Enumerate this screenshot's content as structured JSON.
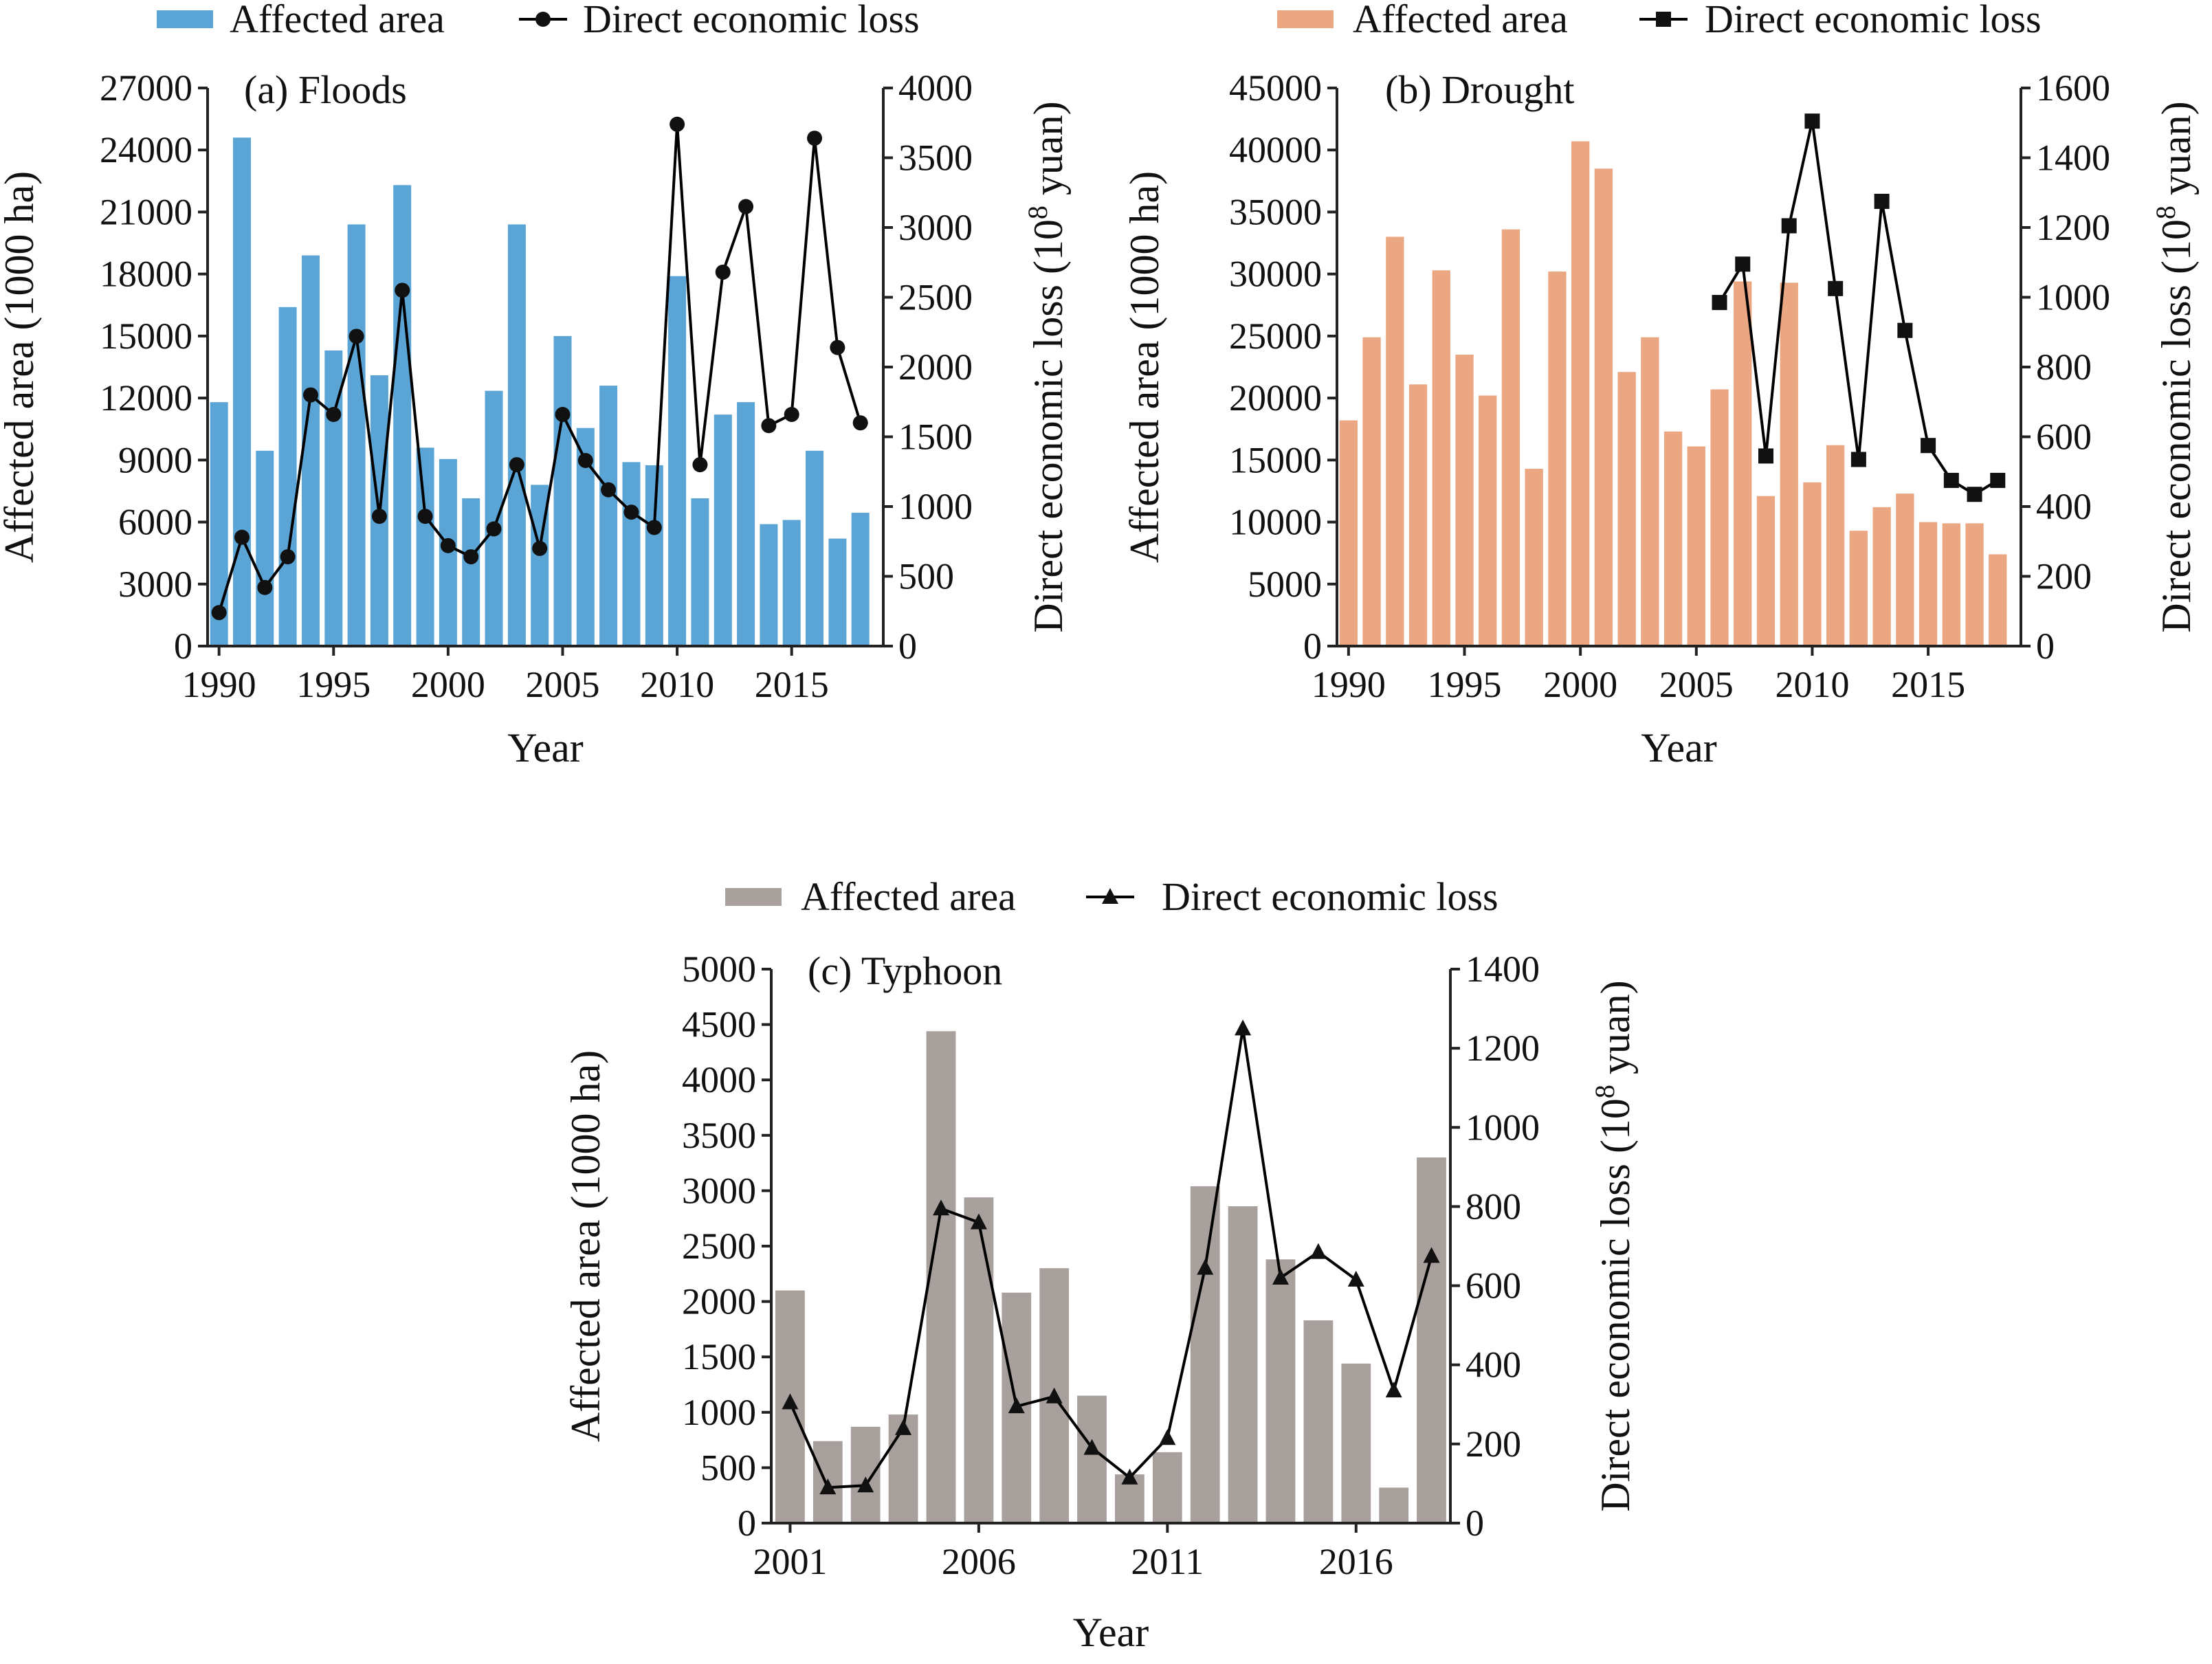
{
  "chart_data": [
    {
      "type": "bar",
      "panel_label": "(a) Floods",
      "xlabel": "Year",
      "ylabel": "Affected area (1000 ha)",
      "y2label_prefix": "Direct economic loss (10",
      "y2label_sup": "8",
      "y2label_suffix": " yuan)",
      "ylim": [
        0,
        27000
      ],
      "yticks": [
        "0",
        "3000",
        "6000",
        "9000",
        "12000",
        "15000",
        "18000",
        "21000",
        "24000",
        "27000"
      ],
      "y2lim": [
        0,
        4000
      ],
      "y2ticks": [
        "0",
        "500",
        "1000",
        "1500",
        "2000",
        "2500",
        "3000",
        "3500",
        "4000"
      ],
      "xticklabels": [
        {
          "year": 1990,
          "label": "1990"
        },
        {
          "year": 1995,
          "label": "1995"
        },
        {
          "year": 2000,
          "label": "2000"
        },
        {
          "year": 2005,
          "label": "2005"
        },
        {
          "year": 2010,
          "label": "2010"
        },
        {
          "year": 2015,
          "label": "2015"
        }
      ],
      "bar_color": "#5aa5d6",
      "marker": "circle",
      "legend_position": "top",
      "series": [
        {
          "name": "Affected area",
          "axis": "left",
          "x": [
            1990,
            1991,
            1992,
            1993,
            1994,
            1995,
            1996,
            1997,
            1998,
            1999,
            2000,
            2001,
            2002,
            2003,
            2004,
            2005,
            2006,
            2007,
            2008,
            2009,
            2010,
            2011,
            2012,
            2013,
            2014,
            2015,
            2016,
            2017,
            2018
          ],
          "values": [
            11800,
            24600,
            9450,
            16400,
            18900,
            14300,
            20400,
            13100,
            22300,
            9600,
            9050,
            7150,
            12350,
            20400,
            7800,
            15000,
            10550,
            12600,
            8900,
            8750,
            17900,
            7150,
            11200,
            11800,
            5900,
            6100,
            9450,
            5200,
            6450
          ]
        },
        {
          "name": "Direct economic loss",
          "axis": "right",
          "x": [
            1990,
            1991,
            1992,
            1993,
            1994,
            1995,
            1996,
            1997,
            1998,
            1999,
            2000,
            2001,
            2002,
            2003,
            2004,
            2005,
            2006,
            2007,
            2008,
            2009,
            2010,
            2011,
            2012,
            2013,
            2014,
            2015,
            2016,
            2017,
            2018
          ],
          "values": [
            240,
            780,
            420,
            640,
            1800,
            1660,
            2220,
            930,
            2550,
            930,
            720,
            640,
            840,
            1300,
            700,
            1660,
            1330,
            1120,
            960,
            850,
            3740,
            1300,
            2680,
            3150,
            1580,
            1660,
            3640,
            2140,
            1600
          ]
        }
      ]
    },
    {
      "type": "bar",
      "panel_label": "(b) Drought",
      "xlabel": "Year",
      "ylabel": "Affected area (1000 ha)",
      "y2label_prefix": "Direct economic loss (10",
      "y2label_sup": "8",
      "y2label_suffix": " yuan)",
      "ylim": [
        0,
        45000
      ],
      "yticks": [
        "0",
        "5000",
        "10000",
        "15000",
        "20000",
        "25000",
        "30000",
        "35000",
        "40000",
        "45000"
      ],
      "y2lim": [
        0,
        1600
      ],
      "y2ticks": [
        "0",
        "200",
        "400",
        "600",
        "800",
        "1000",
        "1200",
        "1400",
        "1600"
      ],
      "xticklabels": [
        {
          "year": 1990,
          "label": "1990"
        },
        {
          "year": 1995,
          "label": "1995"
        },
        {
          "year": 2000,
          "label": "2000"
        },
        {
          "year": 2005,
          "label": "2005"
        },
        {
          "year": 2010,
          "label": "2010"
        },
        {
          "year": 2015,
          "label": "2015"
        }
      ],
      "bar_color": "#eba682",
      "marker": "square",
      "legend_position": "top",
      "series": [
        {
          "name": "Affected area",
          "axis": "left",
          "x": [
            1990,
            1991,
            1992,
            1993,
            1994,
            1995,
            1996,
            1997,
            1998,
            1999,
            2000,
            2001,
            2002,
            2003,
            2004,
            2005,
            2006,
            2007,
            2008,
            2009,
            2010,
            2011,
            2012,
            2013,
            2014,
            2015,
            2016,
            2017,
            2018
          ],
          "values": [
            18200,
            24900,
            33000,
            21100,
            30300,
            23500,
            20200,
            33600,
            14300,
            30200,
            40700,
            38500,
            22100,
            24900,
            17300,
            16100,
            20700,
            29400,
            12100,
            29300,
            13200,
            16200,
            9300,
            11200,
            12300,
            10000,
            9900,
            9900,
            7400
          ]
        },
        {
          "name": "Direct economic loss",
          "axis": "right",
          "x": [
            2006,
            2007,
            2008,
            2009,
            2010,
            2011,
            2012,
            2013,
            2014,
            2015,
            2016,
            2017,
            2018
          ],
          "values": [
            985,
            1095,
            545,
            1205,
            1505,
            1025,
            535,
            1275,
            905,
            575,
            475,
            435,
            475
          ]
        }
      ]
    },
    {
      "type": "bar",
      "panel_label": "(c) Typhoon",
      "xlabel": "Year",
      "ylabel": "Affected area (1000 ha)",
      "y2label_prefix": "Direct economic loss (10",
      "y2label_sup": "8",
      "y2label_suffix": " yuan)",
      "ylim": [
        0,
        5000
      ],
      "yticks": [
        "0",
        "500",
        "1000",
        "1500",
        "2000",
        "2500",
        "3000",
        "3500",
        "4000",
        "4500",
        "5000"
      ],
      "y2lim": [
        0,
        1400
      ],
      "y2ticks": [
        "0",
        "200",
        "400",
        "600",
        "800",
        "1000",
        "1200",
        "1400"
      ],
      "xticklabels": [
        {
          "year": 2001,
          "label": "2001"
        },
        {
          "year": 2006,
          "label": "2006"
        },
        {
          "year": 2011,
          "label": "2011"
        },
        {
          "year": 2016,
          "label": "2016"
        }
      ],
      "bar_color": "#a8a09d",
      "marker": "triangle",
      "legend_position": "top",
      "series": [
        {
          "name": "Affected area",
          "axis": "left",
          "x": [
            2001,
            2002,
            2003,
            2004,
            2005,
            2006,
            2007,
            2008,
            2009,
            2010,
            2011,
            2012,
            2013,
            2014,
            2015,
            2016,
            2017,
            2018
          ],
          "values": [
            2100,
            740,
            870,
            980,
            4440,
            2940,
            2080,
            2300,
            1150,
            440,
            640,
            3040,
            2860,
            2380,
            1830,
            1440,
            320,
            3300
          ]
        },
        {
          "name": "Direct economic loss",
          "axis": "right",
          "x": [
            2001,
            2002,
            2003,
            2004,
            2005,
            2006,
            2007,
            2008,
            2009,
            2010,
            2011,
            2012,
            2013,
            2014,
            2015,
            2016,
            2017,
            2018
          ],
          "values": [
            305,
            90,
            95,
            240,
            795,
            760,
            295,
            320,
            190,
            115,
            215,
            645,
            1250,
            620,
            685,
            615,
            335,
            675
          ]
        }
      ]
    }
  ]
}
